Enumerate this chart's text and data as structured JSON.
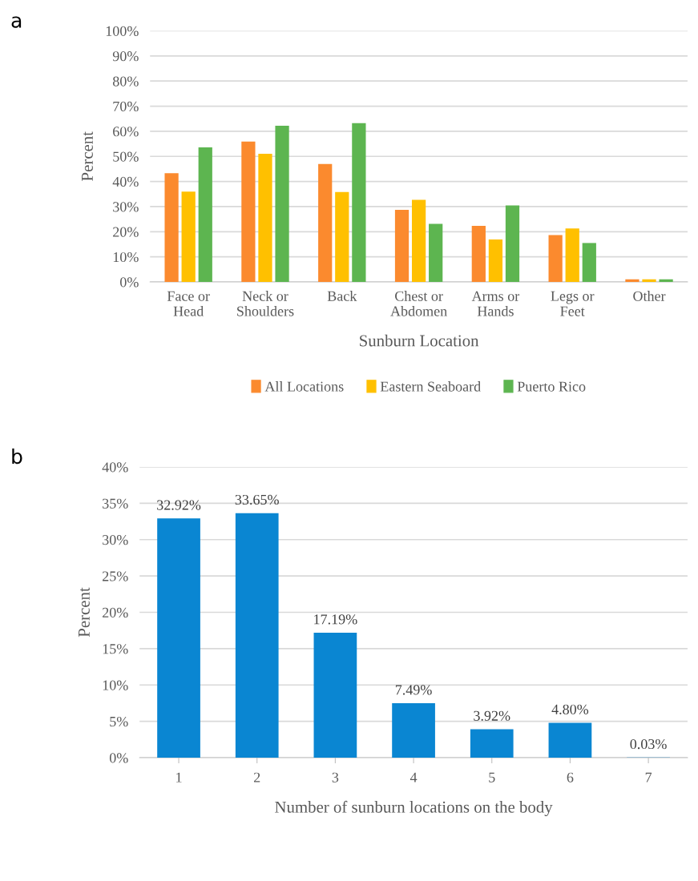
{
  "chart_data": [
    {
      "type": "bar",
      "annotations": [
        "a"
      ],
      "xlabel": "Sunburn Location",
      "ylabel": "Percent",
      "categories": [
        "Face or\nHead",
        "Neck or\nShoulders",
        "Back",
        "Chest or\nAbdomen",
        "Arms or\nHands",
        "Legs or\nFeet",
        "Other"
      ],
      "series": [
        {
          "name": "All Locations",
          "color": "#fb8a2e",
          "values": [
            43.3,
            55.9,
            47,
            28.7,
            22.3,
            18.7,
            1
          ]
        },
        {
          "name": "Eastern Seaboard",
          "color": "#ffc000",
          "values": [
            36,
            51,
            35.8,
            32.7,
            16.9,
            21.3,
            1
          ]
        },
        {
          "name": "Puerto Rico",
          "color": "#5db550",
          "values": [
            53.6,
            62.2,
            63.2,
            23.1,
            30.5,
            15.5,
            1
          ]
        }
      ],
      "ylim": [
        0,
        100
      ],
      "yticks": [
        {
          "value": 0,
          "label": "0%"
        },
        {
          "value": 10,
          "label": "10%"
        },
        {
          "value": 20,
          "label": "20%"
        },
        {
          "value": 30,
          "label": "30%"
        },
        {
          "value": 40,
          "label": "40%"
        },
        {
          "value": 50,
          "label": "50%"
        },
        {
          "value": 60,
          "label": "60%"
        },
        {
          "value": 70,
          "label": "70%"
        },
        {
          "value": 80,
          "label": "80%"
        },
        {
          "value": 90,
          "label": "90%"
        },
        {
          "value": 100,
          "label": "100%"
        }
      ],
      "grid": "y",
      "legend": "bottom"
    },
    {
      "type": "bar",
      "annotations": [
        "b"
      ],
      "xlabel": "Number of sunburn locations on the body",
      "ylabel": "Percent",
      "categories": [
        "1",
        "2",
        "3",
        "4",
        "5",
        "6",
        "7"
      ],
      "values": [
        32.92,
        33.65,
        17.19,
        7.49,
        3.92,
        4.8,
        0.03
      ],
      "color": "#0a86d2",
      "value_labels": [
        "32.92%",
        "33.65%",
        "17.19%",
        "7.49%",
        "3.92%",
        "4.80%",
        "0.03%"
      ],
      "ylim": [
        0,
        40
      ],
      "yticks": [
        {
          "value": 0,
          "label": "0%"
        },
        {
          "value": 5,
          "label": "5%"
        },
        {
          "value": 10,
          "label": "10%"
        },
        {
          "value": 15,
          "label": "15%"
        },
        {
          "value": 20,
          "label": "20%"
        },
        {
          "value": 25,
          "label": "25%"
        },
        {
          "value": 30,
          "label": "30%"
        },
        {
          "value": 35,
          "label": "35%"
        },
        {
          "value": 40,
          "label": "40%"
        }
      ],
      "grid": "y"
    }
  ]
}
